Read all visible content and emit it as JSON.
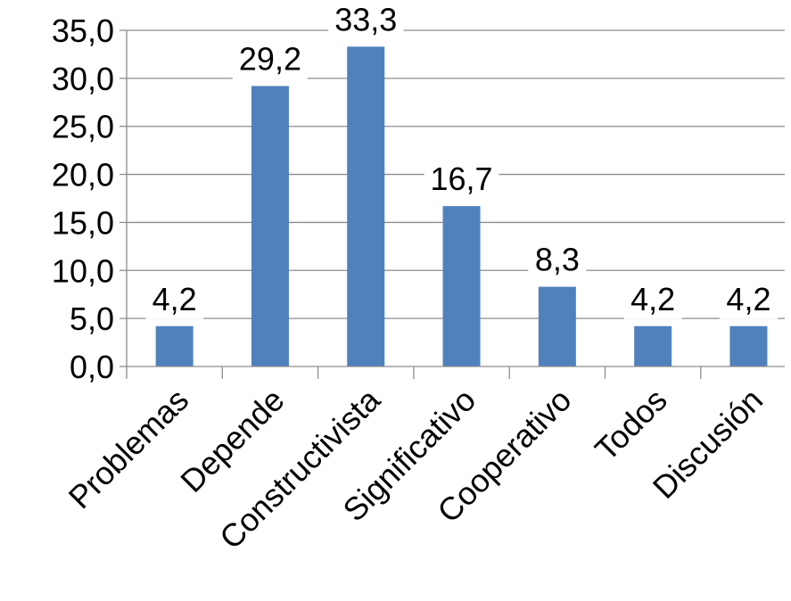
{
  "chart_data": {
    "type": "bar",
    "categories": [
      "Problemas",
      "Depende",
      "Constructivista",
      "Significativo",
      "Cooperativo",
      "Todos",
      "Discusión"
    ],
    "values": [
      4.2,
      29.2,
      33.3,
      16.7,
      8.3,
      4.2,
      4.2
    ],
    "data_labels": [
      "4,2",
      "29,2",
      "33,3",
      "16,7",
      "8,3",
      "4,2",
      "4,2"
    ],
    "yticks": [
      "0,0",
      "5,0",
      "10,0",
      "15,0",
      "20,0",
      "25,0",
      "30,0",
      "35,0"
    ],
    "ylim": [
      0,
      35
    ],
    "ytick_step": 5,
    "grid": true,
    "legend": "none",
    "title": "",
    "xlabel": "",
    "ylabel": "",
    "bar_color": "#4f81bd",
    "gridline_color": "#8c8c8c"
  }
}
